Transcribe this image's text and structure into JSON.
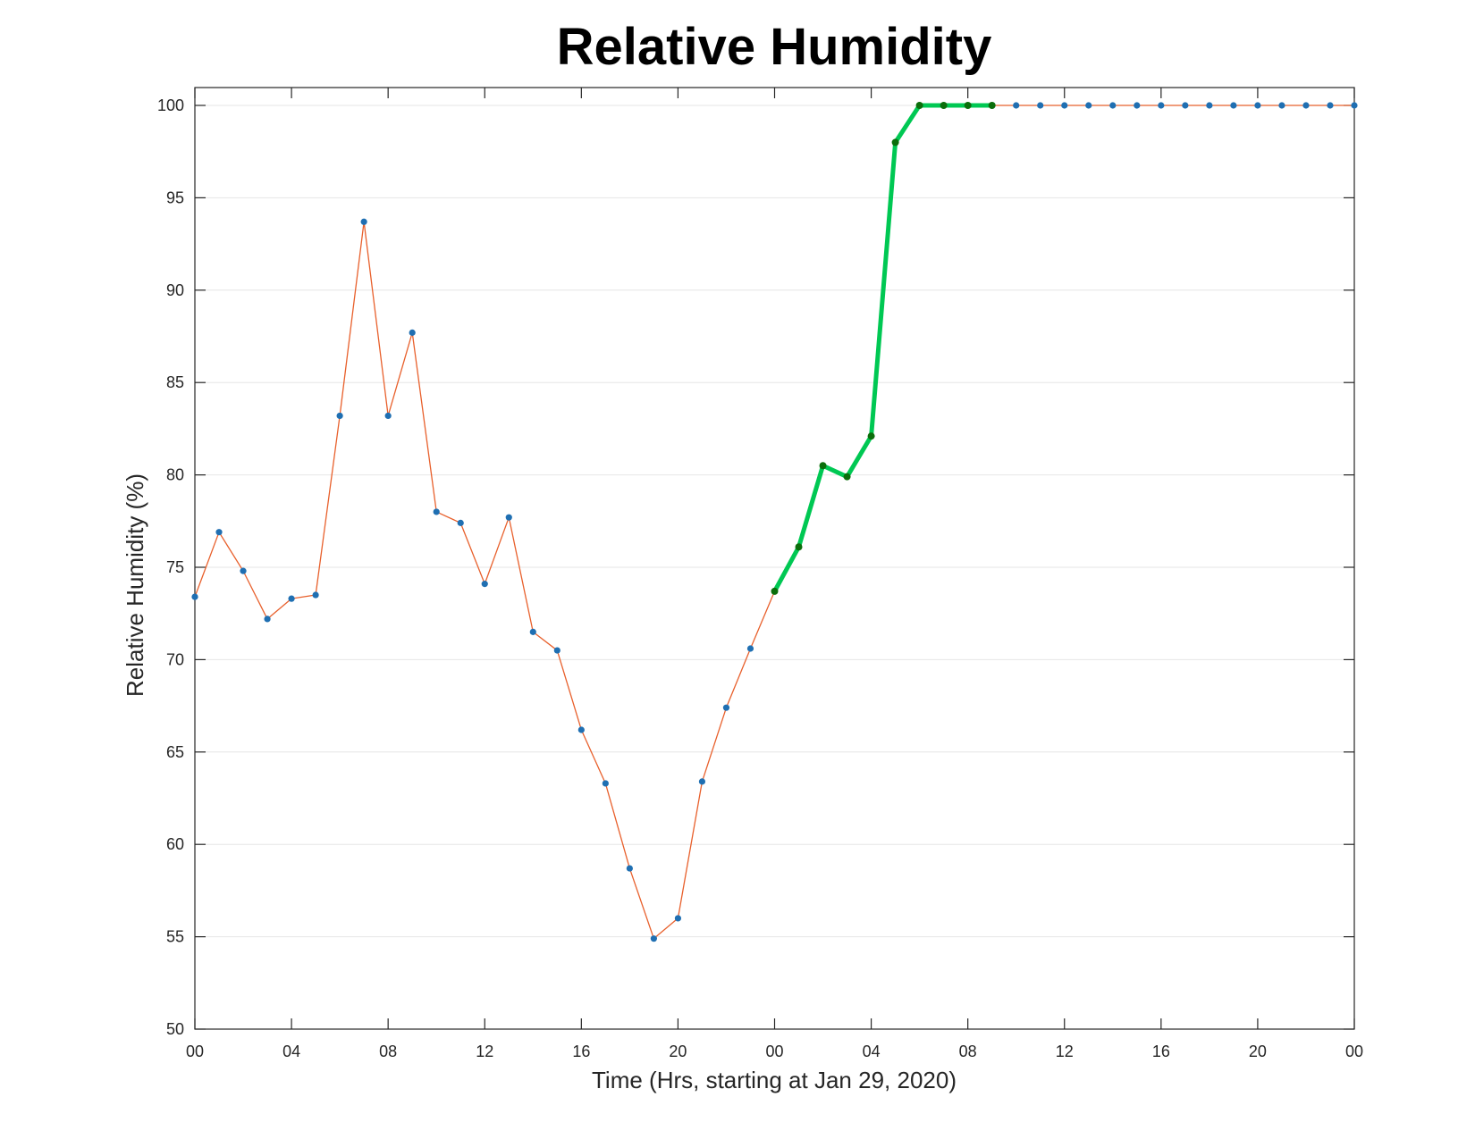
{
  "chart_data": {
    "type": "line",
    "title": "Relative Humidity",
    "xlabel": "Time (Hrs, starting at Jan 29, 2020)",
    "ylabel": "Relative Humidity (%)",
    "ylim": [
      50,
      100
    ],
    "yticks": [
      50,
      55,
      60,
      65,
      70,
      75,
      80,
      85,
      90,
      95,
      100
    ],
    "xlim": [
      0,
      48
    ],
    "xtick_hours": [
      0,
      4,
      8,
      12,
      16,
      20,
      24,
      28,
      32,
      36,
      40,
      44,
      48
    ],
    "xtick_labels": [
      "00",
      "04",
      "08",
      "12",
      "16",
      "20",
      "00",
      "04",
      "08",
      "12",
      "16",
      "20",
      "00"
    ],
    "grid": "horizontal",
    "series": [
      {
        "color": "#e8602c",
        "marker_color": "#1f6fb2",
        "x": [
          0,
          1,
          2,
          3,
          4,
          5,
          6,
          7,
          8,
          9,
          10,
          11,
          12,
          13,
          14,
          15,
          16,
          17,
          18,
          19,
          20,
          21,
          22,
          23,
          24,
          25,
          26,
          27,
          28,
          29,
          30,
          31,
          32,
          33,
          34,
          35,
          36,
          37,
          38,
          39,
          40,
          41,
          42,
          43,
          44,
          45,
          46,
          47,
          48
        ],
        "values": [
          73.4,
          76.9,
          74.8,
          72.2,
          73.3,
          73.5,
          83.2,
          93.7,
          83.2,
          87.7,
          78.0,
          77.4,
          74.1,
          77.7,
          71.5,
          70.5,
          66.2,
          63.3,
          58.7,
          54.9,
          56.0,
          63.4,
          67.4,
          70.6,
          73.7,
          76.1,
          80.5,
          79.9,
          82.1,
          98.0,
          100,
          100,
          100,
          100,
          100,
          100,
          100,
          100,
          100,
          100,
          100,
          100,
          100,
          100,
          100,
          100,
          100,
          100,
          100
        ]
      },
      {
        "color": "#00c853",
        "marker_color": "#0b6e0b",
        "x": [
          24,
          25,
          26,
          27,
          28,
          29,
          30,
          31,
          32,
          33
        ],
        "values": [
          73.7,
          76.1,
          80.5,
          79.9,
          82.1,
          98.0,
          100,
          100,
          100,
          100
        ]
      }
    ]
  }
}
